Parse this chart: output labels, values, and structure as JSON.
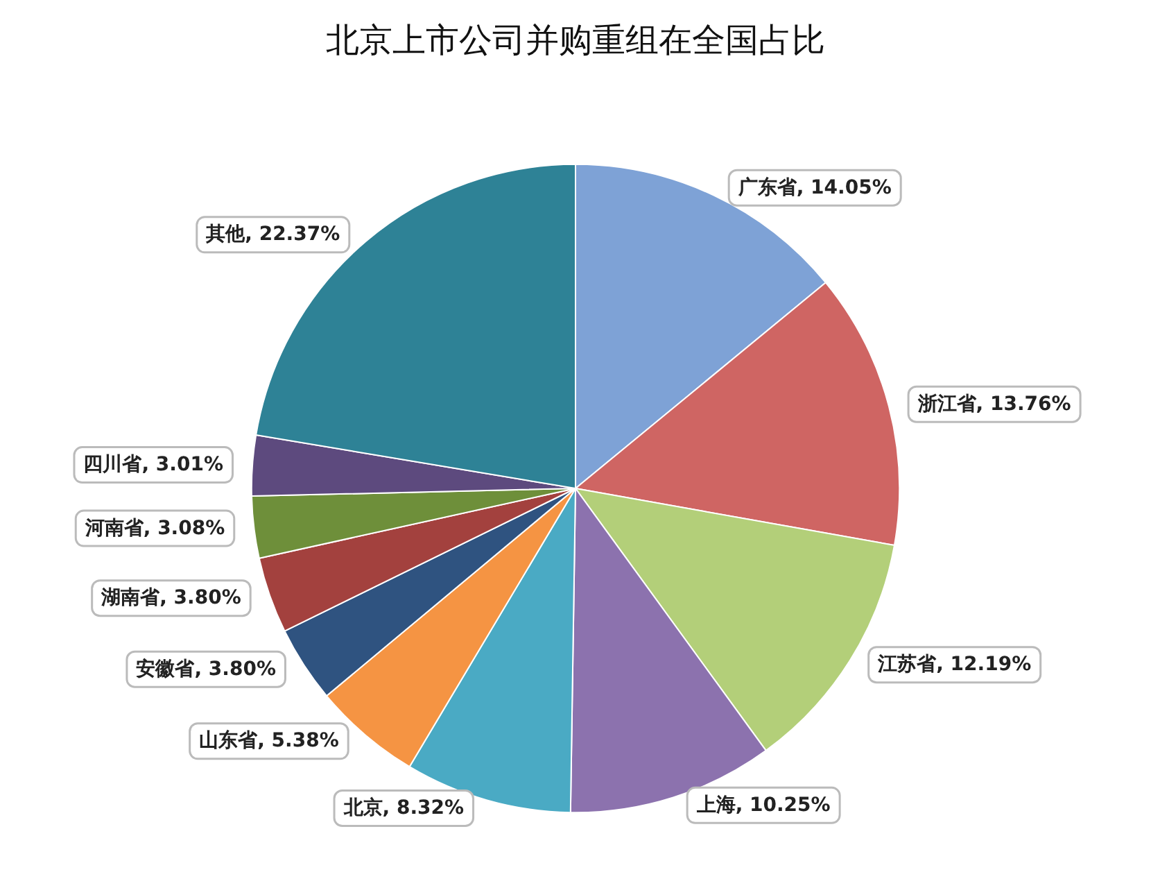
{
  "chart_data": {
    "type": "pie",
    "title": "北京上市公司并购重组在全国占比",
    "categories": [
      "广东省",
      "浙江省",
      "江苏省",
      "上海",
      "北京",
      "山东省",
      "安徽省",
      "湖南省",
      "河南省",
      "四川省",
      "其他"
    ],
    "values": [
      14.05,
      13.76,
      12.19,
      10.25,
      8.32,
      5.38,
      3.8,
      3.8,
      3.08,
      3.01,
      22.37
    ],
    "value_labels": [
      "14.05%",
      "13.76%",
      "12.19%",
      "10.25%",
      "8.32%",
      "5.38%",
      "3.80%",
      "3.80%",
      "3.08%",
      "3.01%",
      "22.37%"
    ],
    "colors": [
      "#7ea2d6",
      "#cf6563",
      "#b3cf79",
      "#8c72ae",
      "#4aaac4",
      "#f59443",
      "#2f5380",
      "#a3413e",
      "#6e8f3a",
      "#5d4a7e",
      "#2e8296"
    ],
    "legend": false
  }
}
